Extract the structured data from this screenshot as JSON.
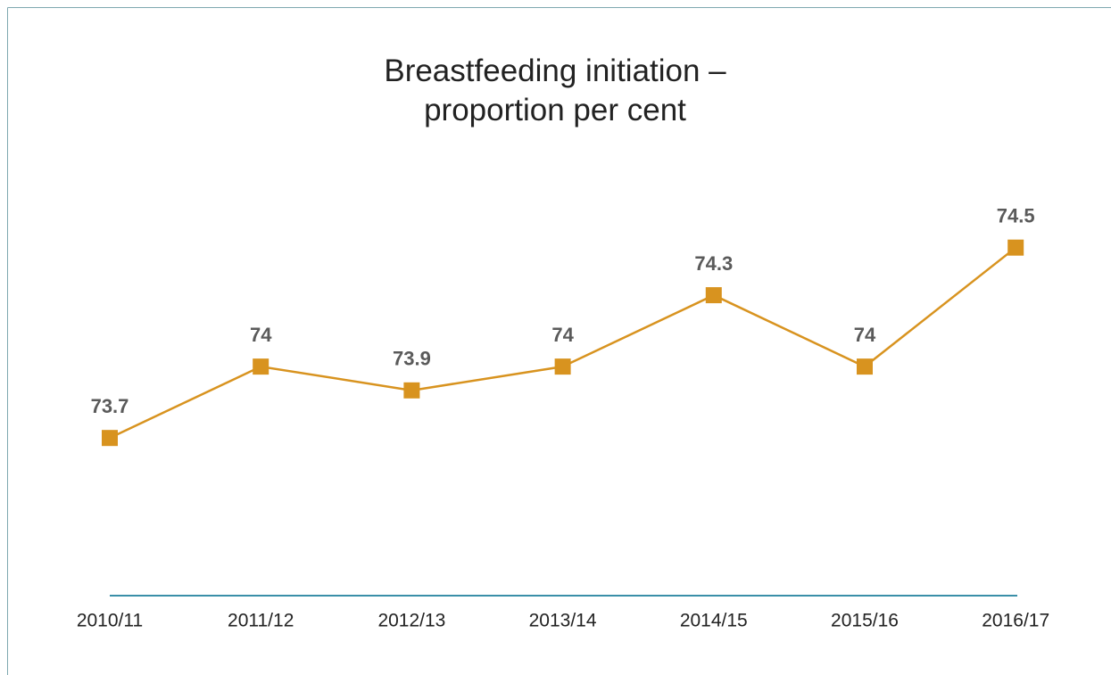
{
  "chart_data": {
    "type": "line",
    "title": "Breastfeeding initiation – proportion per cent",
    "categories": [
      "2010/11",
      "2011/12",
      "2012/13",
      "2013/14",
      "2014/15",
      "2015/16",
      "2016/17"
    ],
    "series": [
      {
        "name": "Breastfeeding initiation",
        "color": "#d8931f",
        "values": [
          73.7,
          74,
          73.9,
          74,
          74.3,
          74,
          74.5
        ]
      }
    ],
    "ylim": [
      73,
      74.6
    ]
  }
}
